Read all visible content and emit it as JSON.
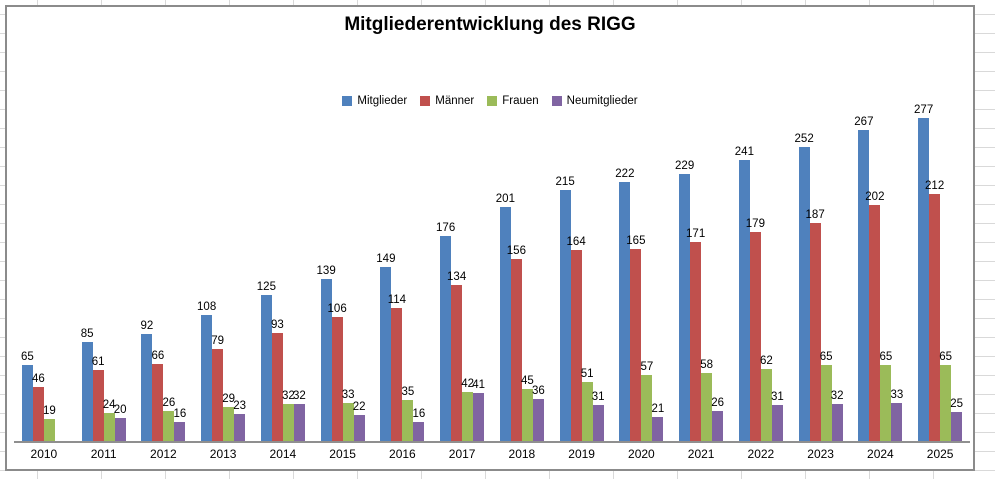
{
  "chart_data": {
    "type": "bar",
    "title": "Mitgliederentwicklung des RIGG",
    "categories": [
      "2010",
      "2011",
      "2012",
      "2013",
      "2014",
      "2015",
      "2016",
      "2017",
      "2018",
      "2019",
      "2020",
      "2021",
      "2022",
      "2023",
      "2024",
      "2025"
    ],
    "series": [
      {
        "name": "Mitglieder",
        "color": "#4F81BD",
        "values": [
          65,
          85,
          92,
          108,
          125,
          139,
          149,
          176,
          201,
          215,
          222,
          229,
          241,
          252,
          267,
          277
        ]
      },
      {
        "name": "Männer",
        "color": "#C0504D",
        "values": [
          46,
          61,
          66,
          79,
          93,
          106,
          114,
          134,
          156,
          164,
          165,
          171,
          179,
          187,
          202,
          212
        ]
      },
      {
        "name": "Frauen",
        "color": "#9BBB59",
        "values": [
          19,
          24,
          26,
          29,
          32,
          33,
          35,
          42,
          45,
          51,
          57,
          58,
          62,
          65,
          65,
          65
        ]
      },
      {
        "name": "Neumitglieder",
        "color": "#8064A2",
        "values": [
          null,
          20,
          16,
          23,
          32,
          22,
          16,
          41,
          36,
          31,
          21,
          26,
          31,
          32,
          33,
          25
        ]
      }
    ],
    "legend_position": "top",
    "legend_labels": [
      "Mitglieder",
      "Männer",
      "Frauen",
      "Neumitglieder"
    ],
    "data_labels": true,
    "y_axis_visible": false,
    "grid": false,
    "ylim": [
      0,
      300
    ]
  }
}
